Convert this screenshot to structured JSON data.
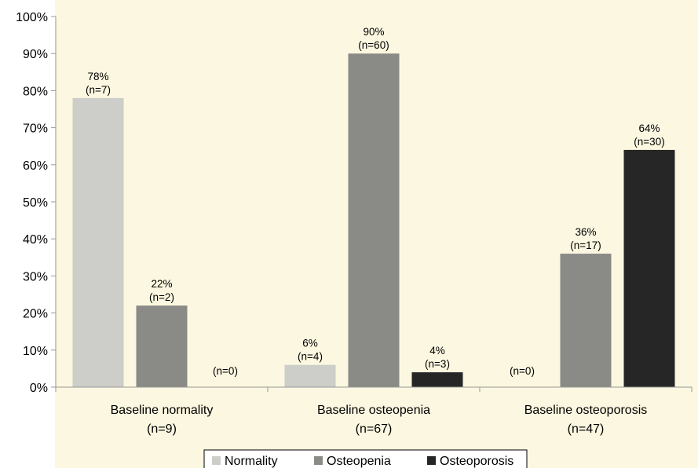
{
  "colors": {
    "background": "#fcf7e0",
    "axis": "#999999",
    "normality": "#cdcdc9",
    "osteopenia": "#8a8a86",
    "osteoporosis": "#262626"
  },
  "chart_data": {
    "type": "bar",
    "categories": [
      "Baseline normality",
      "Baseline osteopenia",
      "Baseline osteoporosis"
    ],
    "category_counts": [
      "(n=9)",
      "(n=67)",
      "(n=47)"
    ],
    "series": [
      {
        "name": "Normality",
        "values": [
          78,
          6,
          0
        ],
        "labels": [
          "78%",
          "6%",
          ""
        ],
        "counts": [
          "(n=7)",
          "(n=4)",
          "(n=0)"
        ]
      },
      {
        "name": "Osteopenia",
        "values": [
          22,
          90,
          36
        ],
        "labels": [
          "22%",
          "90%",
          "36%"
        ],
        "counts": [
          "(n=2)",
          "(n=60)",
          "(n=17)"
        ]
      },
      {
        "name": "Osteoporosis",
        "values": [
          0,
          4,
          64
        ],
        "labels": [
          "",
          "4%",
          "64%"
        ],
        "counts": [
          "(n=0)",
          "(n=3)",
          "(n=30)"
        ]
      }
    ],
    "yticks": [
      "0%",
      "10%",
      "20%",
      "30%",
      "40%",
      "50%",
      "60%",
      "70%",
      "80%",
      "90%",
      "100%"
    ],
    "ylim": [
      0,
      100
    ],
    "grid": false,
    "legend_position": "bottom"
  }
}
